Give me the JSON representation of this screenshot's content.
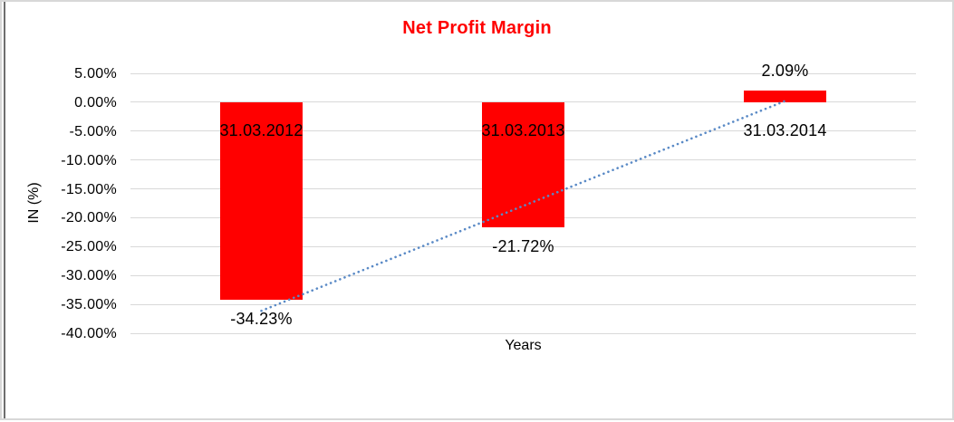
{
  "chart_data": {
    "type": "bar",
    "title": "Net Profit Margin",
    "title_color": "#FF0000",
    "categories": [
      "31.03.2012",
      "31.03.2013",
      "31.03.2014"
    ],
    "values": [
      -34.23,
      -21.72,
      2.09
    ],
    "value_labels": [
      "-34.23%",
      "-21.72%",
      "2.09%"
    ],
    "xlabel": "Years",
    "ylabel": "IN (%)",
    "ylim": [
      -40,
      5
    ],
    "ytick_step": 5,
    "ytick_labels": [
      "5.00%",
      "0.00%",
      "-5.00%",
      "-10.00%",
      "-15.00%",
      "-20.00%",
      "-25.00%",
      "-30.00%",
      "-35.00%",
      "-40.00%"
    ],
    "bar_color": "#FF0000",
    "label_color": "#000000",
    "gridline_color": "#D9D9D9",
    "grid": "horizontal-only",
    "legend_position": "none",
    "trendline": {
      "type": "linear",
      "style": "dotted",
      "color": "#5A8AC6"
    }
  }
}
